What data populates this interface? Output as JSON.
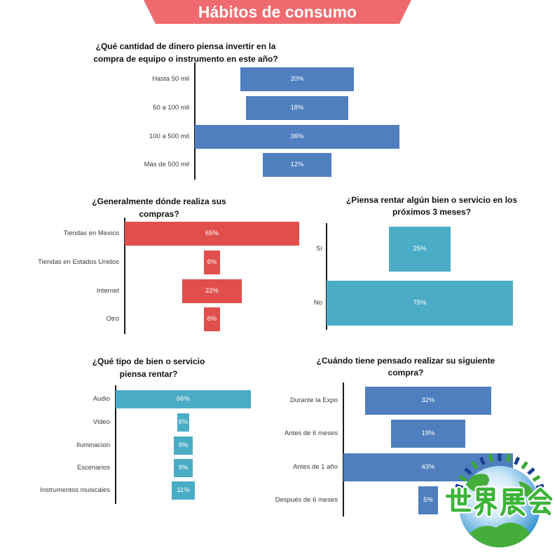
{
  "banner": {
    "title": "Hábitos de consumo",
    "color": "#EF6A6E"
  },
  "chart_data": [
    {
      "type": "bar",
      "orientation": "horizontal",
      "title": [
        "¿Qué cantidad de dinero piensa invertir en la",
        "compra de equipo o instrumento en este año?"
      ],
      "categories": [
        "Hasta 50 mil",
        "50 a 100 mil",
        "100 a 500 mil",
        "Más de 500 mil"
      ],
      "values": [
        20,
        18,
        36,
        12
      ],
      "data_labels": [
        "20%",
        "18%",
        "36%",
        "12%"
      ],
      "color": "#4F7FBF",
      "grid": false
    },
    {
      "type": "bar",
      "orientation": "horizontal",
      "title": [
        "¿Generalmente dónde realiza sus",
        "compras?"
      ],
      "categories": [
        "Tiendas en Mexico",
        "Tiendas en Estados Unidos",
        "Internet",
        "Otro"
      ],
      "values": [
        65,
        6,
        22,
        6
      ],
      "data_labels": [
        "65%",
        "6%",
        "22%",
        "6%"
      ],
      "color": "#E04F4C",
      "grid": false
    },
    {
      "type": "bar",
      "orientation": "horizontal",
      "title": [
        "¿Piensa rentar algún bien o servicio en los",
        "próximos 3 meses?"
      ],
      "categories": [
        "Sí",
        "No"
      ],
      "values": [
        25,
        75
      ],
      "data_labels": [
        "25%",
        "75%"
      ],
      "color": "#4BACC6",
      "grid": false
    },
    {
      "type": "bar",
      "orientation": "horizontal",
      "title": [
        "¿Qué tipo de bien o servicio",
        "piensa rentar?"
      ],
      "categories": [
        "Audio",
        "Video",
        "Iluminacion",
        "Escenarios",
        "Instrumentos musicales"
      ],
      "values": [
        66,
        6,
        9,
        9,
        11
      ],
      "data_labels": [
        "66%",
        "6%",
        "9%",
        "9%",
        "11%"
      ],
      "color": "#4BACC6",
      "grid": false
    },
    {
      "type": "bar",
      "orientation": "horizontal",
      "title": [
        "¿Cuándo tiene pensado realizar su siguiente",
        "compra?"
      ],
      "categories": [
        "Durante la Expo",
        "Antes de 6 meses",
        "Antes de 1 año",
        "Después de 6 meses"
      ],
      "values": [
        32,
        19,
        43,
        5
      ],
      "data_labels": [
        "32%",
        "19%",
        "43%",
        "5%"
      ],
      "color": "#4F7FBF",
      "grid": false
    }
  ],
  "logo": {
    "text": "世界展会"
  }
}
